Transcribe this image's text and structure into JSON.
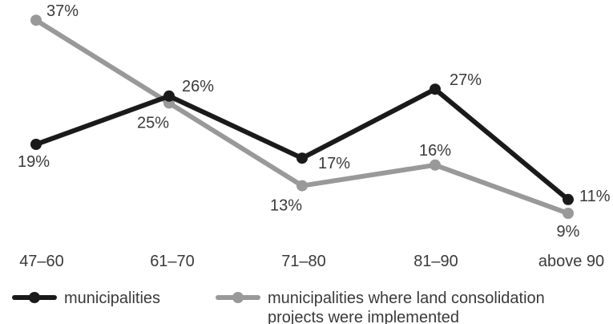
{
  "chart_data": {
    "type": "line",
    "categories": [
      "47–60",
      "61–70",
      "71–80",
      "81–90",
      "above 90"
    ],
    "unit": "%",
    "ylim": [
      0,
      40
    ],
    "grid": false,
    "legend_placement": "bottom",
    "series": [
      {
        "name": "municipalities",
        "values": [
          19,
          26,
          17,
          27,
          11
        ],
        "color": "#1a1a1a"
      },
      {
        "name": "municipalities where land consolidation projects were implemented",
        "name_lines": [
          "municipalities where land consolidation",
          "projects were implemented"
        ],
        "values": [
          37,
          25,
          13,
          16,
          9
        ],
        "color": "#999999"
      }
    ]
  }
}
